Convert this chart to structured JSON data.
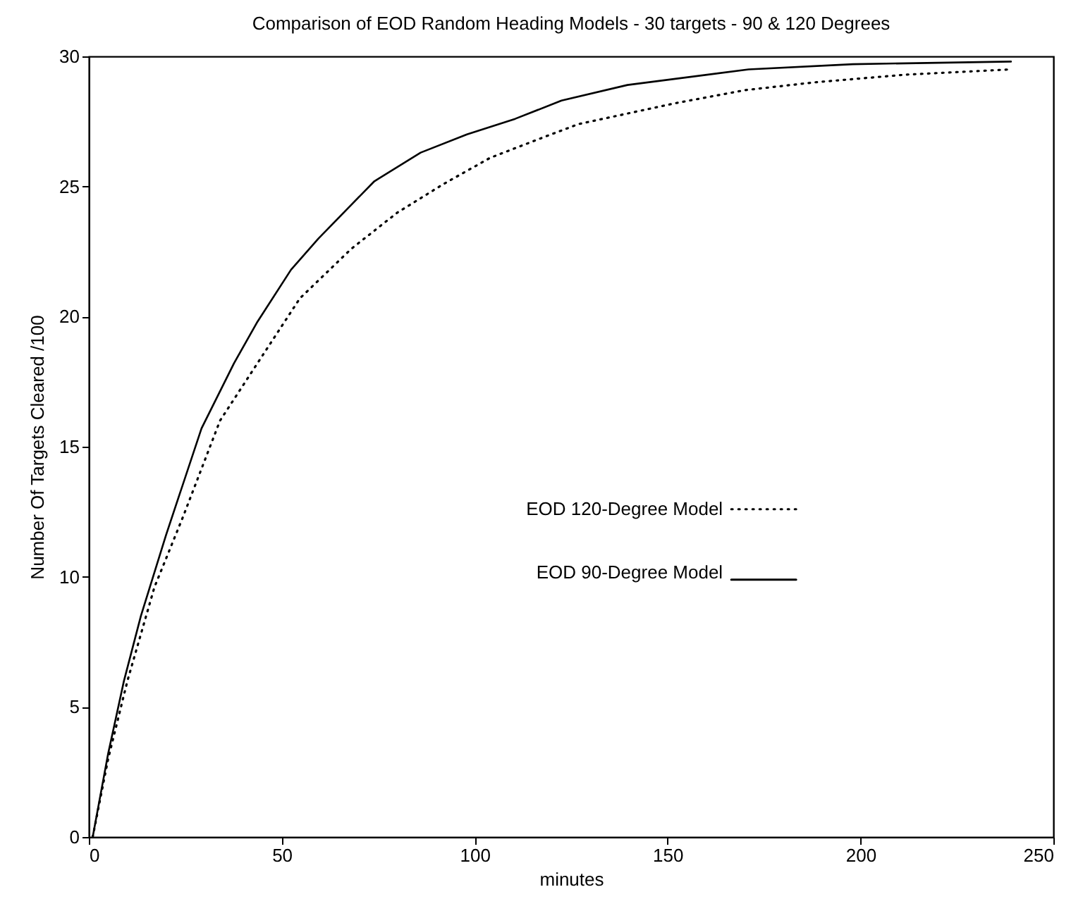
{
  "chart_data": {
    "type": "line",
    "title": "Comparison of EOD Random Heading Models - 30 targets - 90 & 120 Degrees",
    "xlabel": "minutes",
    "ylabel": "Number Of Targets Cleared  /100",
    "xlim": [
      0,
      250
    ],
    "xticks": [
      0,
      50,
      100,
      150,
      200,
      250
    ],
    "ylim": [
      0,
      30
    ],
    "yticks": [
      0,
      5,
      10,
      15,
      20,
      25,
      30
    ],
    "grid": false,
    "legend": "right",
    "marker": "none",
    "series": [
      {
        "name": "EOD 120-Degree Model",
        "color": "#000000",
        "line_style": "dotted",
        "x": [
          1,
          5,
          10,
          17,
          24.4,
          34,
          45,
          54.7,
          68,
          80,
          92,
          104,
          118,
          127,
          152,
          170,
          188,
          212,
          239
        ],
        "values": [
          0,
          3,
          6.0,
          9.6,
          12.3,
          16.0,
          18.5,
          20.7,
          22.6,
          24.0,
          25.1,
          26.1,
          26.9,
          27.4,
          28.2,
          28.7,
          29.0,
          29.3,
          29.5
        ]
      },
      {
        "name": "EOD 90-Degree Model",
        "color": "#000000",
        "line_style": "solid",
        "x": [
          1,
          5,
          9.1,
          13.5,
          20,
          29.2,
          37.6,
          43.7,
          52.4,
          59.5,
          74,
          86,
          98,
          110.5,
          122.5,
          139.6,
          171,
          198,
          239
        ],
        "values": [
          0,
          3.2,
          6.0,
          8.5,
          11.6,
          15.7,
          18.2,
          19.8,
          21.8,
          23.0,
          25.2,
          26.3,
          27.0,
          27.6,
          28.3,
          28.9,
          29.5,
          29.7,
          29.8
        ]
      }
    ]
  }
}
